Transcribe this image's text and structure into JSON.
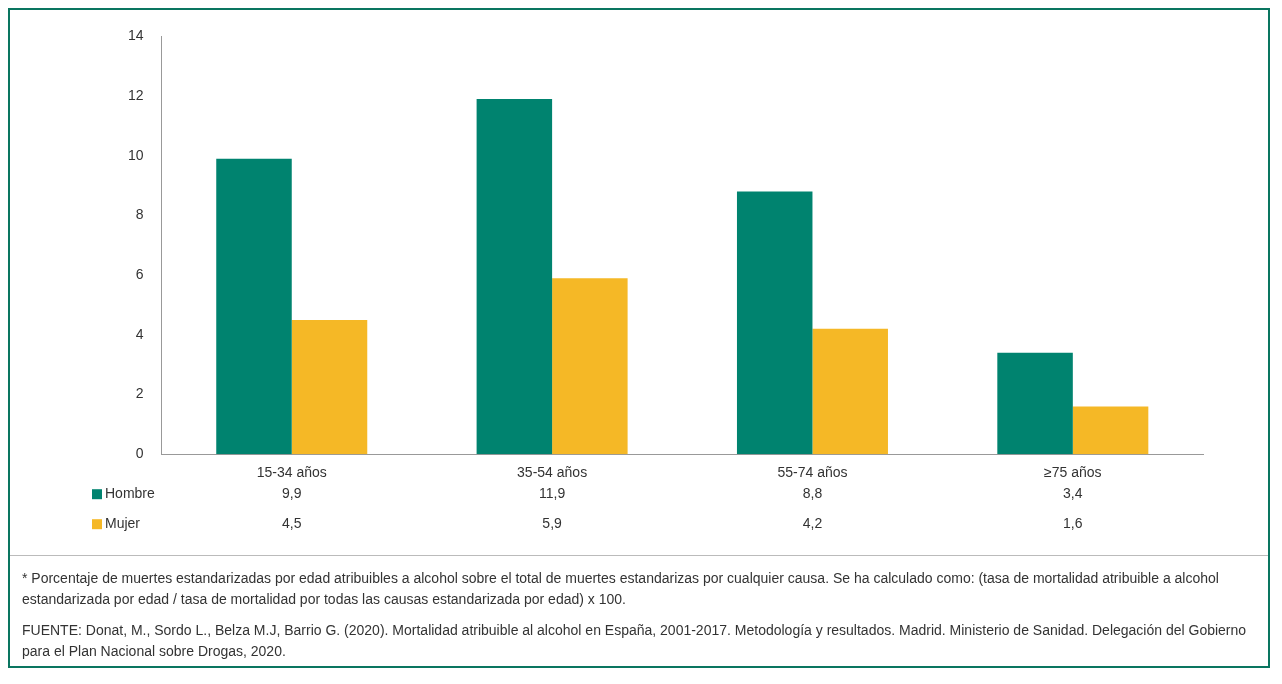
{
  "chart_data": {
    "type": "bar",
    "categories": [
      "15-34 años",
      "35-54 años",
      "55-74 años",
      "≥75 años"
    ],
    "series": [
      {
        "name": "Hombre",
        "color": "#00836f",
        "values": [
          9.9,
          11.9,
          8.8,
          3.4
        ],
        "value_labels": [
          "9,9",
          "11,9",
          "8,8",
          "3,4"
        ]
      },
      {
        "name": "Mujer",
        "color": "#f5b826",
        "values": [
          4.5,
          5.9,
          4.2,
          1.6
        ],
        "value_labels": [
          "4,5",
          "5,9",
          "4,2",
          "1,6"
        ]
      }
    ],
    "ylim": [
      0,
      14
    ],
    "yticks": [
      0,
      2,
      4,
      6,
      8,
      10,
      12,
      14
    ],
    "grid": false,
    "legend": "bottom",
    "annotations": [
      "* Porcentaje de muertes estandarizadas por edad atribuibles a alcohol sobre el total de muertes estandarizas por cualquier causa. Se ha calculado como: (tasa de mortalidad atribuible a alcohol estandarizada por edad / tasa de mortalidad por todas las causas estandarizada por edad) x 100.",
      "FUENTE: Donat, M., Sordo L., Belza M.J, Barrio G. (2020). Mortalidad atribuible al alcohol en España, 2001-2017. Metodología y resultados. Madrid. Ministerio de Sanidad. Delegación del Gobierno para el Plan Nacional sobre Drogas, 2020."
    ]
  }
}
